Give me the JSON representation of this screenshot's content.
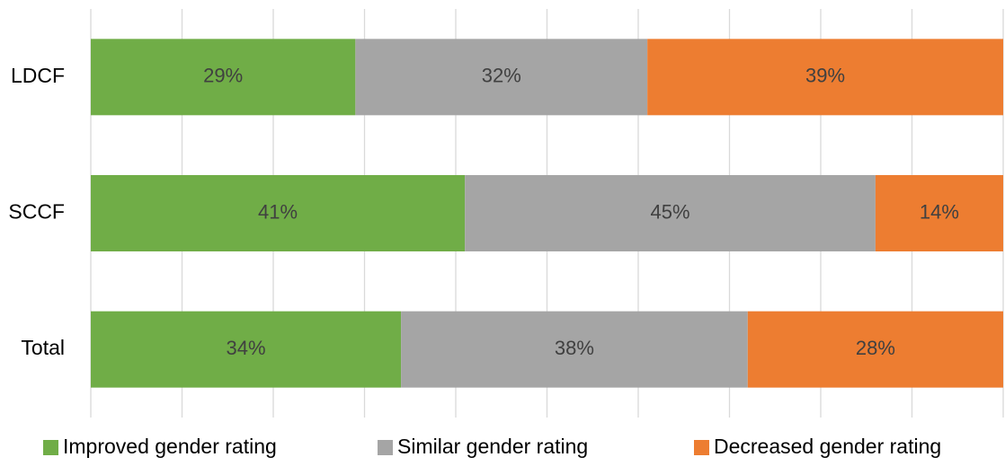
{
  "chart_data": {
    "type": "stacked_barh",
    "categories": [
      "LDCF",
      "SCCF",
      "Total"
    ],
    "series": [
      {
        "name": "Improved gender rating",
        "color": "#70ad47",
        "values": [
          29,
          41,
          34
        ],
        "value_labels": [
          "29%",
          "41%",
          "34%"
        ]
      },
      {
        "name": "Similar gender rating",
        "color": "#a5a5a5",
        "values": [
          32,
          45,
          38
        ],
        "value_labels": [
          "32%",
          "45%",
          "38%"
        ]
      },
      {
        "name": "Decreased gender rating",
        "color": "#ed7d31",
        "values": [
          39,
          14,
          28
        ],
        "value_labels": [
          "39%",
          "14%",
          "28%"
        ]
      }
    ],
    "xlim": [
      0,
      100
    ],
    "xticks": [
      0,
      10,
      20,
      30,
      40,
      50,
      60,
      70,
      80,
      90,
      100
    ],
    "grid": true,
    "legend": "bottom"
  }
}
